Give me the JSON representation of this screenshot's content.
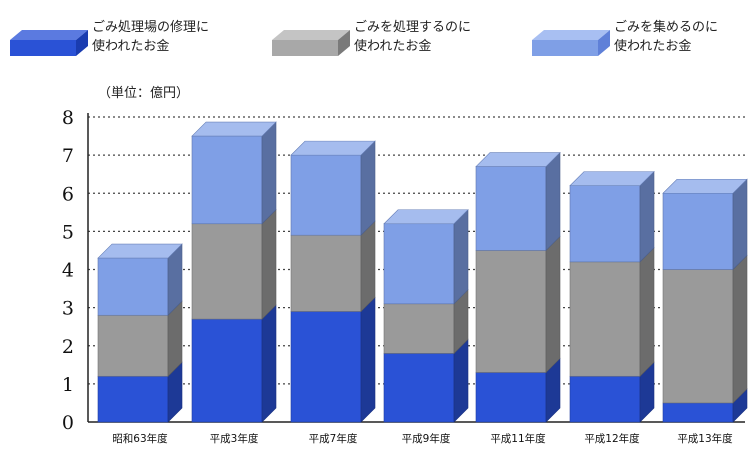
{
  "chart_data": {
    "type": "bar",
    "stacked": true,
    "style": "3d",
    "unit_label": "（単位：億円）",
    "categories": [
      "昭和63年度",
      "平成3年度",
      "平成7年度",
      "平成9年度",
      "平成11年度",
      "平成12年度",
      "平成13年度"
    ],
    "series": [
      {
        "name": "ごみ処理場の修理に\n使われたお金",
        "color": "#2a52d6",
        "values": [
          1.2,
          2.7,
          2.9,
          1.8,
          1.3,
          1.2,
          0.5
        ]
      },
      {
        "name": "ごみを処理するのに\n使われたお金",
        "color": "#9a9a9a",
        "values": [
          1.6,
          2.5,
          2.0,
          1.3,
          3.2,
          3.0,
          3.5
        ]
      },
      {
        "name": "ごみを集めるのに\n使われたお金",
        "color": "#7f9fe6",
        "values": [
          1.5,
          2.3,
          2.1,
          2.1,
          2.2,
          2.0,
          2.0
        ]
      }
    ],
    "ylim": [
      0,
      8
    ],
    "yticks": [
      0,
      1,
      2,
      3,
      4,
      5,
      6,
      7,
      8
    ],
    "grid": true,
    "legend_position": "top"
  }
}
